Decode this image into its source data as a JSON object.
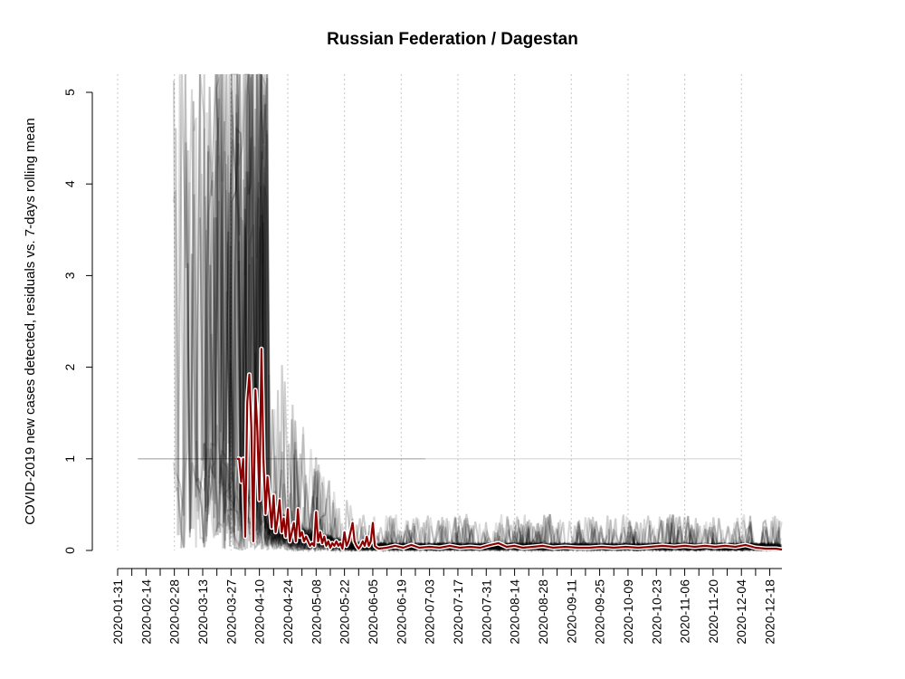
{
  "chart_data": {
    "type": "line",
    "title": "Russian Federation / Dagestan",
    "ylabel": "COVID-2019 new cases detected, residuals vs. 7-days rolling mean",
    "xlabel": "",
    "ylim": [
      0,
      5
    ],
    "xlim": [
      "2020-01-31",
      "2020-12-24"
    ],
    "yticks": [
      0,
      1,
      2,
      3,
      4,
      5
    ],
    "xticks": [
      "2020-01-31",
      "2020-02-14",
      "2020-02-28",
      "2020-03-13",
      "2020-03-27",
      "2020-04-10",
      "2020-04-24",
      "2020-05-08",
      "2020-05-22",
      "2020-06-05",
      "2020-06-19",
      "2020-07-03",
      "2020-07-17",
      "2020-07-31",
      "2020-08-14",
      "2020-08-28",
      "2020-09-11",
      "2020-09-25",
      "2020-10-09",
      "2020-10-23",
      "2020-11-06",
      "2020-11-20",
      "2020-12-04",
      "2020-12-18"
    ],
    "vgrid": [
      "2020-01-31",
      "2020-02-28",
      "2020-03-27",
      "2020-04-24",
      "2020-05-22",
      "2020-06-19",
      "2020-07-17",
      "2020-08-14",
      "2020-09-11",
      "2020-10-09",
      "2020-11-06",
      "2020-12-04"
    ],
    "grid": "vertical dotted",
    "colors": {
      "highlight": "#8b0000",
      "background_series": "#000000",
      "grid": "#c8c8c8"
    },
    "series": [
      {
        "role": "highlight",
        "x": [
          "2020-03-30",
          "2020-03-31",
          "2020-04-01",
          "2020-04-02",
          "2020-04-03",
          "2020-04-04",
          "2020-04-05",
          "2020-04-06",
          "2020-04-07",
          "2020-04-08",
          "2020-04-09",
          "2020-04-10",
          "2020-04-11",
          "2020-04-12",
          "2020-04-13",
          "2020-04-14",
          "2020-04-15",
          "2020-04-16",
          "2020-04-17",
          "2020-04-18",
          "2020-04-19",
          "2020-04-20",
          "2020-04-21",
          "2020-04-22",
          "2020-04-23",
          "2020-04-24",
          "2020-04-25",
          "2020-04-26",
          "2020-04-27",
          "2020-04-28",
          "2020-04-29",
          "2020-04-30",
          "2020-05-01",
          "2020-05-02",
          "2020-05-03",
          "2020-05-04",
          "2020-05-05",
          "2020-05-06",
          "2020-05-07",
          "2020-05-08",
          "2020-05-09",
          "2020-05-10",
          "2020-05-11",
          "2020-05-12",
          "2020-05-13",
          "2020-05-14",
          "2020-05-15",
          "2020-05-16",
          "2020-05-17",
          "2020-05-18",
          "2020-05-19",
          "2020-05-20",
          "2020-05-21",
          "2020-05-22",
          "2020-05-23",
          "2020-05-24",
          "2020-05-25",
          "2020-05-26",
          "2020-05-27",
          "2020-05-28",
          "2020-05-29",
          "2020-05-30",
          "2020-05-31",
          "2020-06-01",
          "2020-06-02",
          "2020-06-03",
          "2020-06-04",
          "2020-06-05",
          "2020-06-06",
          "2020-06-07",
          "2020-06-08",
          "2020-06-12",
          "2020-06-16",
          "2020-06-20",
          "2020-06-24",
          "2020-06-28",
          "2020-07-03",
          "2020-07-08",
          "2020-07-13",
          "2020-07-18",
          "2020-07-23",
          "2020-07-28",
          "2020-08-02",
          "2020-08-06",
          "2020-08-10",
          "2020-08-14",
          "2020-08-18",
          "2020-08-23",
          "2020-08-28",
          "2020-09-02",
          "2020-09-08",
          "2020-09-14",
          "2020-09-20",
          "2020-09-26",
          "2020-10-02",
          "2020-10-08",
          "2020-10-14",
          "2020-10-20",
          "2020-10-26",
          "2020-11-01",
          "2020-11-06",
          "2020-11-11",
          "2020-11-16",
          "2020-11-21",
          "2020-11-26",
          "2020-12-01",
          "2020-12-06",
          "2020-12-11",
          "2020-12-16",
          "2020-12-21",
          "2020-12-24"
        ],
        "values": [
          1.0,
          1.0,
          0.75,
          1.0,
          0.15,
          1.62,
          1.92,
          1.35,
          0.1,
          1.75,
          1.3,
          0.55,
          2.2,
          1.0,
          0.4,
          0.8,
          0.55,
          0.25,
          0.6,
          0.2,
          0.35,
          0.55,
          0.2,
          0.35,
          0.15,
          0.45,
          0.1,
          0.2,
          0.3,
          0.1,
          0.45,
          0.15,
          0.2,
          0.1,
          0.15,
          0.1,
          0.05,
          0.08,
          0.05,
          0.42,
          0.1,
          0.2,
          0.08,
          0.15,
          0.05,
          0.1,
          0.03,
          0.08,
          0.05,
          0.1,
          0.05,
          0.08,
          0.02,
          0.2,
          0.05,
          0.1,
          0.2,
          0.3,
          0.1,
          0.05,
          0.02,
          0.05,
          0.1,
          0.05,
          0.15,
          0.05,
          0.1,
          0.3,
          0.05,
          0.03,
          0.02,
          0.03,
          0.05,
          0.03,
          0.06,
          0.03,
          0.04,
          0.03,
          0.05,
          0.03,
          0.04,
          0.03,
          0.06,
          0.08,
          0.04,
          0.05,
          0.03,
          0.04,
          0.05,
          0.03,
          0.04,
          0.03,
          0.03,
          0.04,
          0.03,
          0.04,
          0.03,
          0.04,
          0.05,
          0.04,
          0.05,
          0.04,
          0.05,
          0.04,
          0.05,
          0.04,
          0.06,
          0.03,
          0.02,
          0.02,
          0.01
        ]
      }
    ]
  }
}
